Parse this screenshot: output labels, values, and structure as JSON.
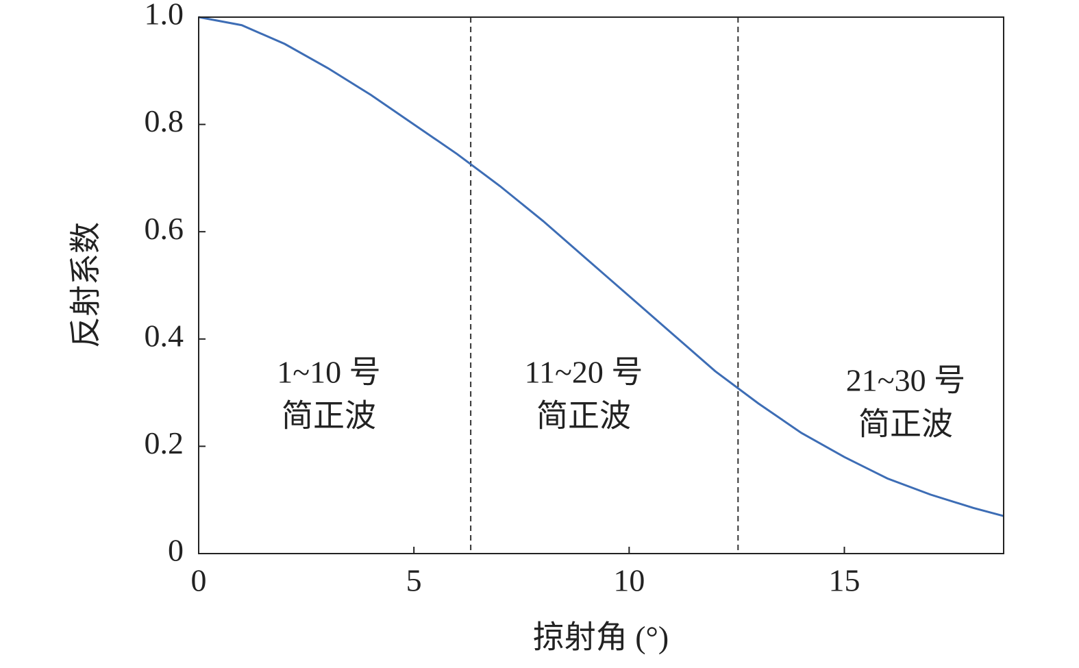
{
  "chart_data": {
    "type": "line",
    "x_label": "掠射角 (°)",
    "y_label": "反射系数",
    "x": [
      0,
      1,
      2,
      3,
      4,
      5,
      6,
      7,
      8,
      9,
      10,
      11,
      12,
      13,
      14,
      15,
      16,
      17,
      18,
      18.7
    ],
    "series": [
      {
        "color": "#3d6db5",
        "values": [
          1.0,
          0.985,
          0.95,
          0.905,
          0.855,
          0.8,
          0.745,
          0.685,
          0.62,
          0.55,
          0.48,
          0.41,
          0.34,
          0.28,
          0.225,
          0.18,
          0.14,
          0.11,
          0.085,
          0.07
        ]
      }
    ],
    "xlim": [
      0,
      18.7
    ],
    "ylim": [
      0,
      1
    ],
    "xticks": [
      0,
      5,
      10,
      15
    ],
    "yticks": [
      0,
      0.2,
      0.4,
      0.6,
      0.8,
      {
        "value": 1,
        "label": "1.0"
      }
    ],
    "vlines": [
      6.32,
      12.53
    ],
    "annotations": [
      {
        "lines": [
          "1~10 号",
          "简正波"
        ]
      },
      {
        "lines": [
          "11~20 号",
          "简正波"
        ]
      },
      {
        "lines": [
          "21~30 号",
          "简正波"
        ]
      }
    ]
  }
}
